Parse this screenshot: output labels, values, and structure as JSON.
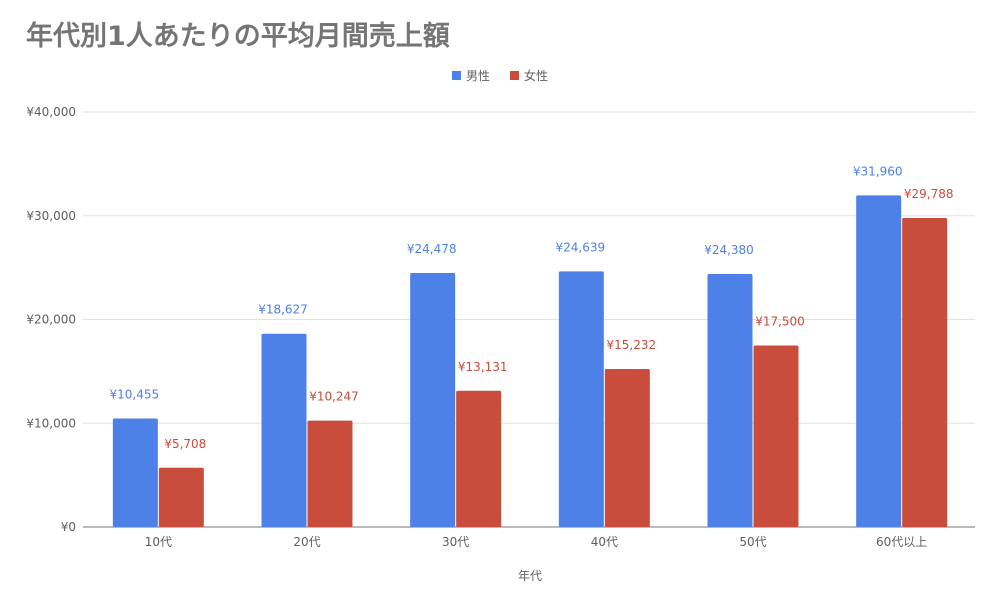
{
  "chart_data": {
    "type": "bar",
    "title": "年代別1人あたりの平均月間売上額",
    "xlabel": "年代",
    "ylabel": "",
    "categories": [
      "10代",
      "20代",
      "30代",
      "40代",
      "50代",
      "60代以上"
    ],
    "series": [
      {
        "name": "男性",
        "color": "#4e81e8",
        "values": [
          10455,
          18627,
          24478,
          24639,
          24380,
          31960
        ],
        "labels": [
          "¥10,455",
          "¥18,627",
          "¥24,478",
          "¥24,639",
          "¥24,380",
          "¥31,960"
        ]
      },
      {
        "name": "女性",
        "color": "#c94c3c",
        "values": [
          5708,
          10247,
          13131,
          15232,
          17500,
          29788
        ],
        "labels": [
          "¥5,708",
          "¥10,247",
          "¥13,131",
          "¥15,232",
          "¥17,500",
          "¥29,788"
        ]
      }
    ],
    "yticks": [
      0,
      10000,
      20000,
      30000,
      40000
    ],
    "ytick_labels": [
      "¥0",
      "¥10,000",
      "¥20,000",
      "¥30,000",
      "¥40,000"
    ],
    "ylim": [
      0,
      40000
    ],
    "grid": true,
    "legend": "top-center"
  }
}
